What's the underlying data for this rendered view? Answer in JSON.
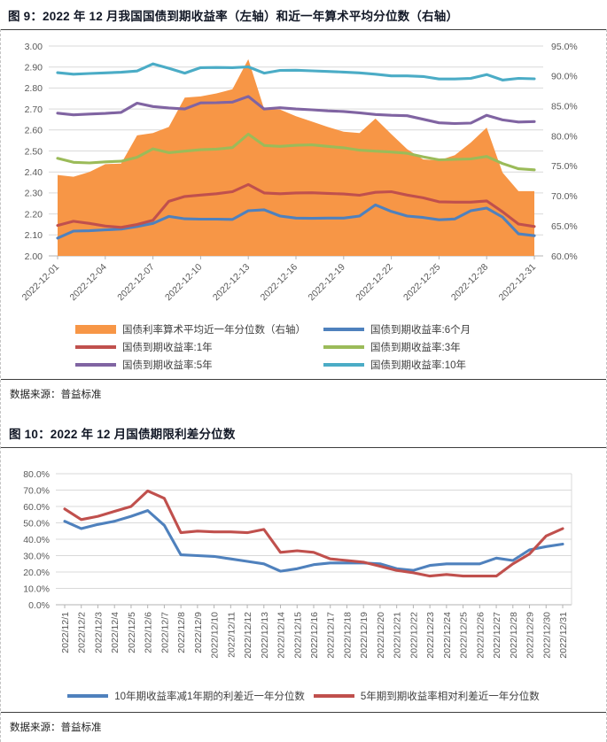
{
  "figure9": {
    "title": "图 9：2022 年 12 月我国国债到期收益率（左轴）和近一年算术平均分位数（右轴）",
    "source": "数据来源：普益标准"
  },
  "figure10": {
    "title": "图 10：2022 年 12 月国债期限利差分位数",
    "source": "数据来源：普益标准"
  },
  "chart_data": [
    {
      "type": "area+line combo",
      "title": "图 9：2022 年 12 月我国国债到期收益率（左轴）和近一年算术平均分位数（右轴）",
      "x": [
        "2022-12-01",
        "2022-12-02",
        "2022-12-03",
        "2022-12-04",
        "2022-12-05",
        "2022-12-06",
        "2022-12-07",
        "2022-12-08",
        "2022-12-09",
        "2022-12-10",
        "2022-12-11",
        "2022-12-12",
        "2022-12-13",
        "2022-12-14",
        "2022-12-15",
        "2022-12-16",
        "2022-12-17",
        "2022-12-18",
        "2022-12-19",
        "2022-12-20",
        "2022-12-21",
        "2022-12-22",
        "2022-12-23",
        "2022-12-24",
        "2022-12-25",
        "2022-12-26",
        "2022-12-27",
        "2022-12-28",
        "2022-12-29",
        "2022-12-30",
        "2022-12-31"
      ],
      "x_tick_step": 3,
      "x_label_rotation": -45,
      "grid": true,
      "legend_position": "bottom",
      "left_axis": {
        "min": 2.0,
        "max": 3.0,
        "labels": [
          "3.00",
          "2.90",
          "2.80",
          "2.70",
          "2.60",
          "2.50",
          "2.40",
          "2.30",
          "2.20",
          "2.10",
          "2.00"
        ]
      },
      "right_axis": {
        "min": 60,
        "max": 95,
        "labels": [
          "95.0%",
          "90.0%",
          "85.0%",
          "80.0%",
          "75.0%",
          "70.0%",
          "65.0%",
          "60.0%"
        ]
      },
      "area_series": {
        "name": "国债利率算术平均近一年分位数（右轴）",
        "axis": "right",
        "color": "#F79646",
        "values": [
          73.5,
          73.2,
          74.0,
          75.3,
          75.4,
          80.1,
          80.5,
          81.5,
          86.4,
          86.6,
          87.1,
          87.8,
          92.8,
          84.5,
          84.4,
          83.3,
          82.4,
          81.5,
          80.7,
          80.5,
          82.9,
          80.3,
          77.8,
          76.1,
          75.9,
          76.8,
          78.9,
          81.4,
          73.9,
          70.8,
          70.8
        ]
      },
      "line_series": [
        {
          "name": "国债到期收益率:6个月",
          "axis": "left",
          "color": "#4F81BD",
          "values": [
            2.085,
            2.118,
            2.12,
            2.124,
            2.128,
            2.14,
            2.155,
            2.188,
            2.177,
            2.175,
            2.175,
            2.174,
            2.215,
            2.22,
            2.19,
            2.18,
            2.179,
            2.18,
            2.18,
            2.19,
            2.243,
            2.212,
            2.19,
            2.183,
            2.172,
            2.176,
            2.215,
            2.228,
            2.185,
            2.105,
            2.096
          ]
        },
        {
          "name": "国债到期收益率:1年",
          "axis": "left",
          "color": "#C0504D",
          "values": [
            2.145,
            2.165,
            2.155,
            2.142,
            2.136,
            2.15,
            2.17,
            2.26,
            2.283,
            2.29,
            2.296,
            2.306,
            2.34,
            2.3,
            2.296,
            2.3,
            2.301,
            2.298,
            2.295,
            2.289,
            2.303,
            2.306,
            2.29,
            2.277,
            2.258,
            2.256,
            2.256,
            2.262,
            2.21,
            2.152,
            2.14
          ]
        },
        {
          "name": "国债到期收益率:3年",
          "axis": "left",
          "color": "#9BBB59",
          "values": [
            2.465,
            2.446,
            2.443,
            2.448,
            2.451,
            2.47,
            2.51,
            2.492,
            2.499,
            2.506,
            2.509,
            2.516,
            2.58,
            2.526,
            2.522,
            2.527,
            2.529,
            2.522,
            2.515,
            2.504,
            2.499,
            2.495,
            2.489,
            2.472,
            2.458,
            2.46,
            2.462,
            2.474,
            2.44,
            2.415,
            2.41
          ]
        },
        {
          "name": "国债到期收益率:5年",
          "axis": "left",
          "color": "#8064A2",
          "values": [
            2.68,
            2.672,
            2.676,
            2.679,
            2.684,
            2.728,
            2.712,
            2.705,
            2.7,
            2.729,
            2.73,
            2.733,
            2.76,
            2.7,
            2.706,
            2.7,
            2.696,
            2.691,
            2.688,
            2.682,
            2.674,
            2.67,
            2.668,
            2.651,
            2.634,
            2.631,
            2.633,
            2.67,
            2.648,
            2.638,
            2.64
          ]
        },
        {
          "name": "国债到期收益率:10年",
          "axis": "left",
          "color": "#4BACC6",
          "values": [
            2.873,
            2.866,
            2.869,
            2.872,
            2.875,
            2.881,
            2.915,
            2.894,
            2.871,
            2.897,
            2.898,
            2.897,
            2.901,
            2.871,
            2.884,
            2.885,
            2.882,
            2.879,
            2.876,
            2.872,
            2.866,
            2.858,
            2.858,
            2.855,
            2.843,
            2.843,
            2.846,
            2.864,
            2.838,
            2.846,
            2.844
          ]
        }
      ]
    },
    {
      "type": "line",
      "title": "图 10：2022 年 12 月国债期限利差分位数",
      "x": [
        "2022/12/1",
        "2022/12/2",
        "2022/12/3",
        "2022/12/4",
        "2022/12/5",
        "2022/12/6",
        "2022/12/7",
        "2022/12/8",
        "2022/12/9",
        "2022/12/10",
        "2022/12/11",
        "2022/12/12",
        "2022/12/13",
        "2022/12/14",
        "2022/12/15",
        "2022/12/16",
        "2022/12/17",
        "2022/12/18",
        "2022/12/19",
        "2022/12/20",
        "2022/12/21",
        "2022/12/22",
        "2022/12/23",
        "2022/12/24",
        "2022/12/25",
        "2022/12/26",
        "2022/12/27",
        "2022/12/28",
        "2022/12/29",
        "2022/12/30",
        "2022/12/31"
      ],
      "x_tick_step": 1,
      "x_label_rotation": -90,
      "grid": true,
      "legend_position": "bottom",
      "left_axis": {
        "min": 0,
        "max": 80,
        "labels": [
          "80.0%",
          "70.0%",
          "60.0%",
          "50.0%",
          "40.0%",
          "30.0%",
          "20.0%",
          "10.0%",
          "0.0%"
        ]
      },
      "line_series": [
        {
          "name": "10年期收益率减1年期的利差近一年分位数",
          "axis": "left",
          "color": "#4F81BD",
          "values": [
            51,
            46.5,
            49,
            51,
            54,
            57.5,
            48.5,
            30.5,
            30,
            29.5,
            28,
            26.5,
            25,
            20.5,
            22,
            24.5,
            25.5,
            25.5,
            25.5,
            25,
            22,
            21,
            24,
            25,
            25,
            25,
            28.5,
            27,
            33.5,
            35.5,
            37
          ]
        },
        {
          "name": "5年期到期收益率相对利差近一年分位数",
          "axis": "left",
          "color": "#C0504D",
          "values": [
            58.5,
            52,
            54,
            57,
            60,
            69.5,
            65,
            44,
            45,
            44.5,
            44.5,
            44,
            46,
            32,
            33,
            32,
            28,
            27,
            26,
            23.5,
            21,
            19.5,
            17.5,
            18.5,
            17.5,
            17.5,
            17.5,
            25,
            31,
            42,
            46.5
          ]
        }
      ]
    }
  ]
}
